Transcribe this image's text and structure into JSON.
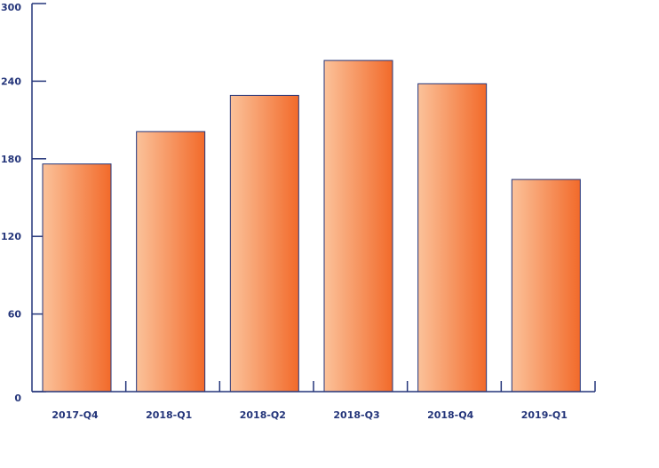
{
  "chart_data": {
    "type": "bar",
    "title": "",
    "xlabel": "",
    "ylabel": "",
    "categories": [
      "2017-Q4",
      "2018-Q1",
      "2018-Q2",
      "2018-Q3",
      "2018-Q4",
      "2019-Q1"
    ],
    "values": [
      176,
      201,
      229,
      256,
      238,
      164
    ],
    "ylim": [
      0,
      300
    ],
    "yticks": [
      "0",
      "60",
      "120",
      "180",
      "240",
      "300"
    ],
    "grid": false,
    "legend": "none",
    "colors": {
      "bar_light": "#fbc29a",
      "bar_dark": "#f26a2a",
      "axis": "#24357a",
      "text": "#24357a"
    }
  }
}
